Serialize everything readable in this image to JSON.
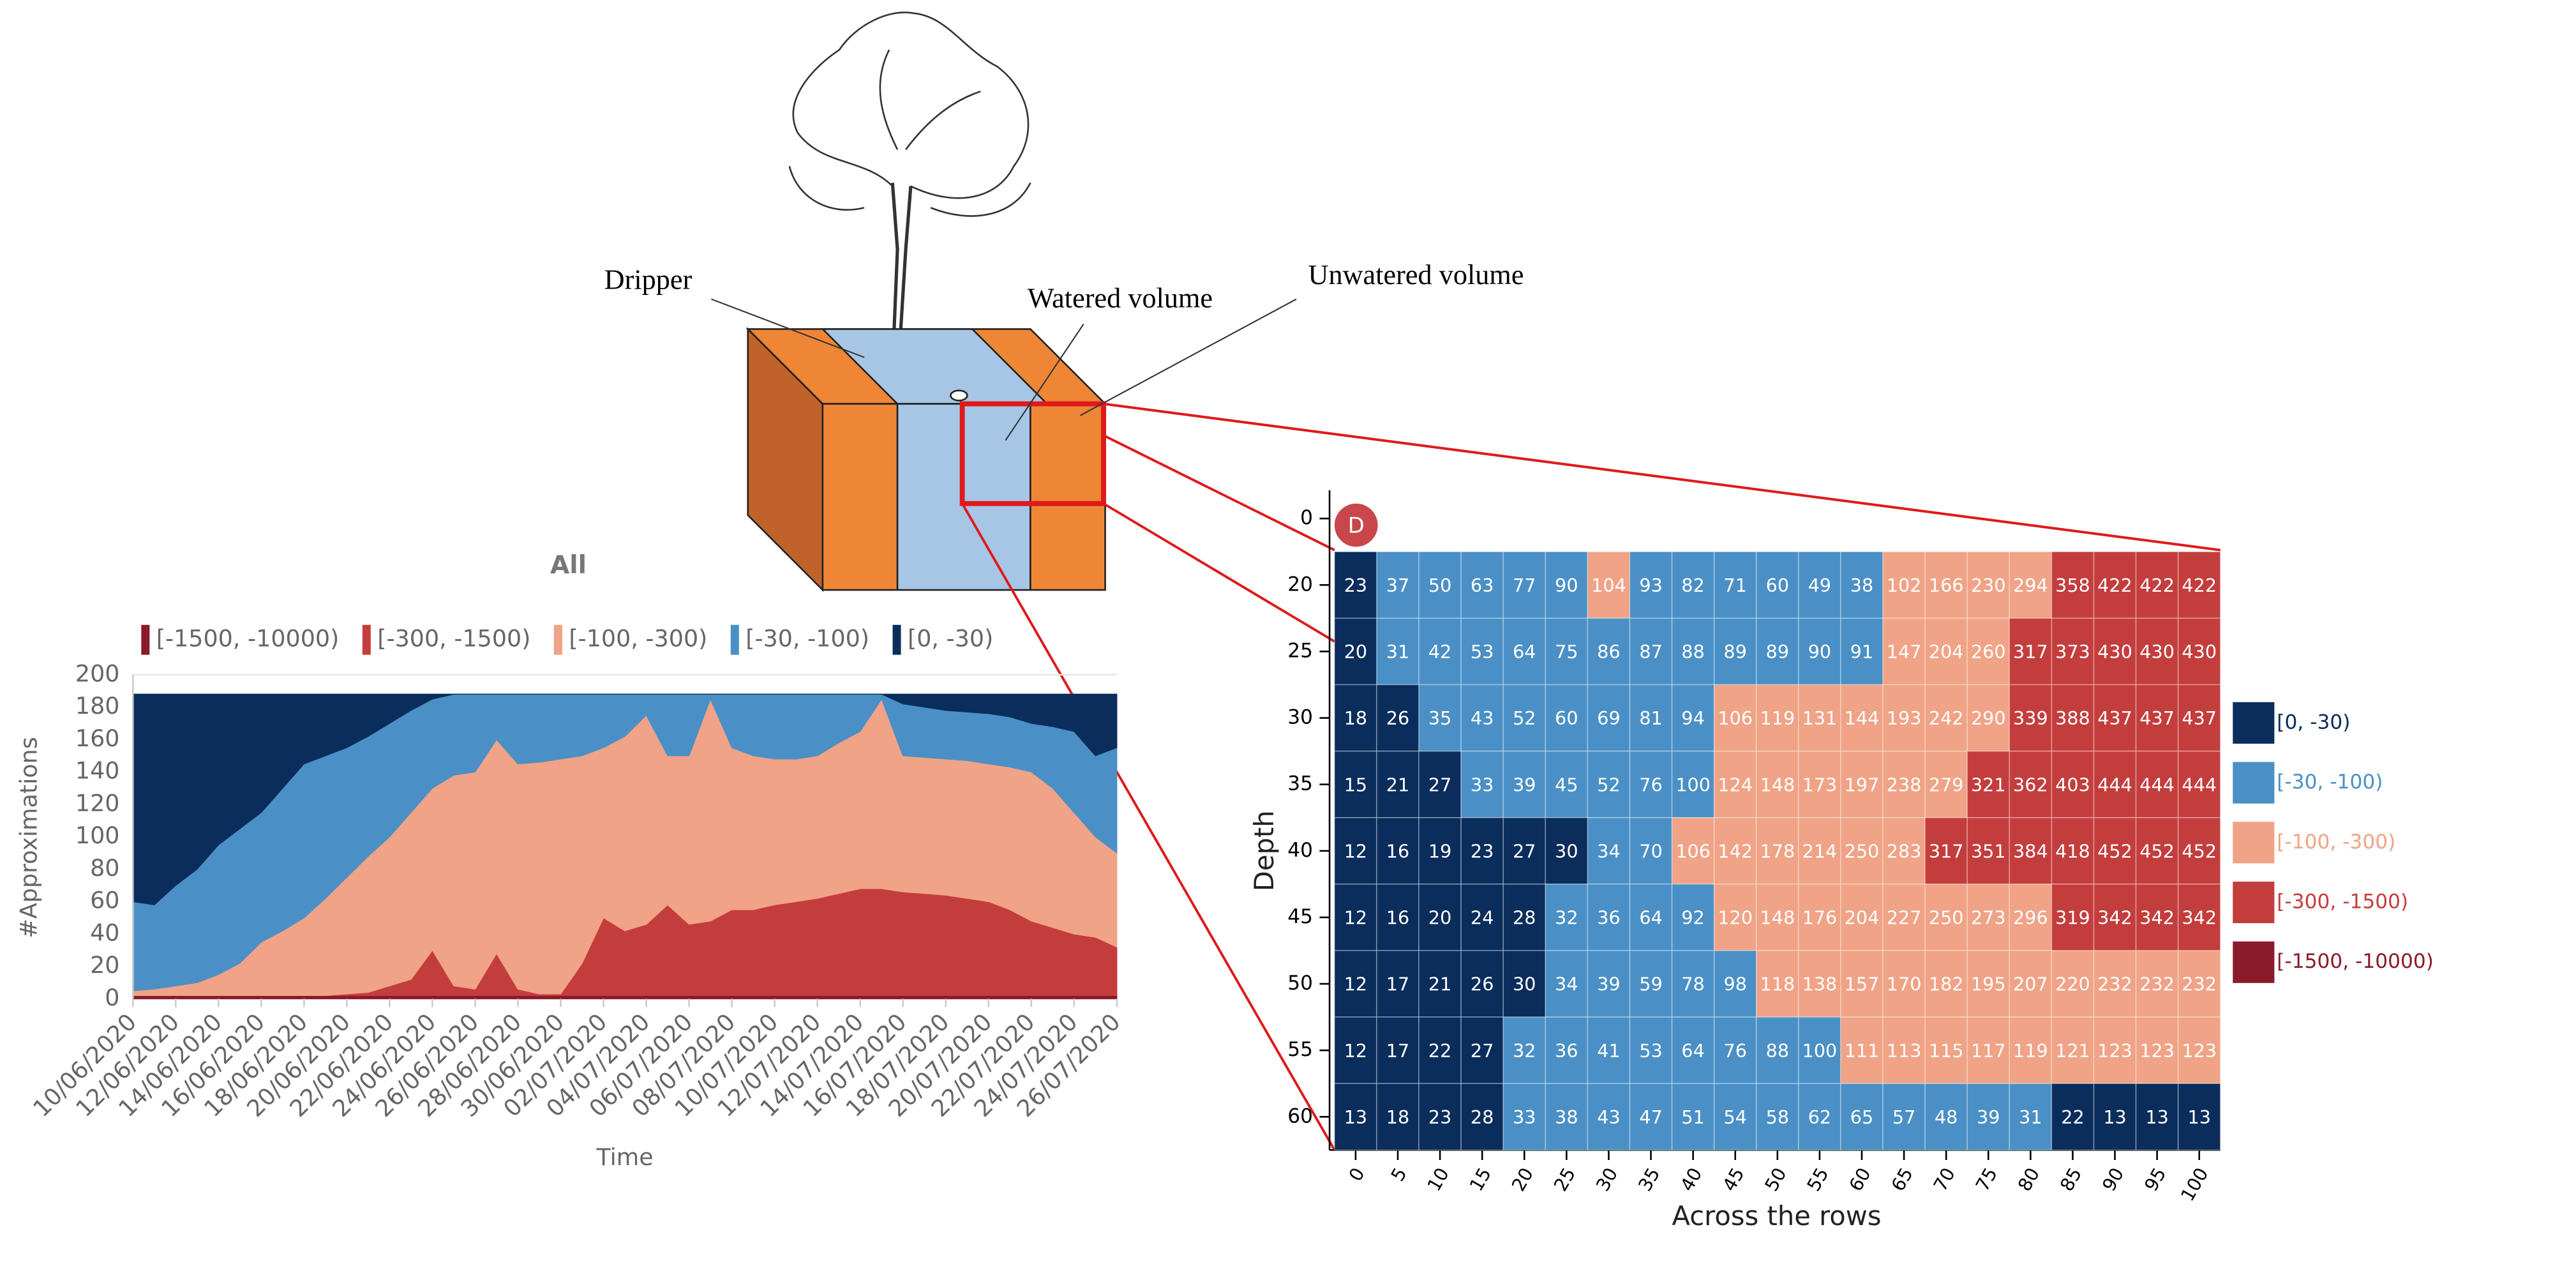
{
  "diagram": {
    "labels": [
      "Dripper",
      "Watered volume",
      "Unwatered volume"
    ],
    "panel_label": "D"
  },
  "chart_data": [
    {
      "type": "area",
      "stacked": true,
      "title": "All",
      "x_label": "Time",
      "y_label": "#Approximations",
      "categories": [
        "10/06/2020",
        null,
        "12/06/2020",
        null,
        "14/06/2020",
        null,
        "16/06/2020",
        null,
        "18/06/2020",
        null,
        "20/06/2020",
        null,
        "22/06/2020",
        null,
        "24/06/2020",
        null,
        "26/06/2020",
        null,
        "28/06/2020",
        null,
        "30/06/2020",
        null,
        "02/07/2020",
        null,
        "04/07/2020",
        null,
        "06/07/2020",
        null,
        "08/07/2020",
        null,
        "10/07/2020",
        null,
        "12/07/2020",
        null,
        "14/07/2020",
        null,
        "16/07/2020",
        null,
        "18/07/2020",
        null,
        "20/07/2020",
        null,
        "22/07/2020",
        null,
        "24/07/2020",
        null,
        "26/07/2020"
      ],
      "series": [
        {
          "name": "[-1500, -10000)",
          "color": "#8b1a2b",
          "values": [
            2,
            2,
            2,
            2,
            2,
            2,
            2,
            2,
            2,
            2,
            2,
            2,
            2,
            2,
            2,
            2,
            2,
            2,
            2,
            2,
            2,
            2,
            2,
            2,
            2,
            2,
            2,
            2,
            2,
            2,
            2,
            2,
            2,
            2,
            2,
            2,
            2,
            2,
            2,
            2,
            2,
            2,
            2,
            2,
            2,
            2,
            2
          ]
        },
        {
          "name": "[-300, -1500)",
          "color": "#c43d3d",
          "values": [
            0,
            0,
            0,
            0,
            0,
            0,
            0,
            0,
            0,
            0,
            1,
            2,
            6,
            10,
            28,
            6,
            4,
            26,
            4,
            1,
            1,
            20,
            48,
            40,
            44,
            56,
            44,
            46,
            53,
            53,
            56,
            58,
            60,
            63,
            66,
            66,
            64,
            63,
            62,
            60,
            58,
            53,
            46,
            42,
            38,
            36,
            30
          ]
        },
        {
          "name": "[-100, -300)",
          "color": "#f0a386",
          "values": [
            3,
            4,
            6,
            8,
            13,
            20,
            33,
            40,
            48,
            60,
            72,
            84,
            92,
            103,
            100,
            130,
            134,
            132,
            139,
            143,
            145,
            128,
            105,
            120,
            129,
            92,
            104,
            137,
            100,
            95,
            90,
            88,
            88,
            93,
            97,
            117,
            84,
            84,
            84,
            85,
            85,
            88,
            92,
            86,
            75,
            62,
            58
          ]
        },
        {
          "name": "[-30, -100)",
          "color": "#4a90c6",
          "values": [
            55,
            52,
            62,
            70,
            80,
            83,
            80,
            88,
            95,
            88,
            80,
            74,
            70,
            63,
            55,
            50,
            48,
            28,
            43,
            42,
            40,
            38,
            33,
            26,
            13,
            38,
            38,
            3,
            33,
            38,
            40,
            40,
            38,
            30,
            23,
            3,
            32,
            31,
            30,
            30,
            31,
            31,
            30,
            38,
            50,
            50,
            65
          ]
        },
        {
          "name": "[0, -30)",
          "color": "#0b2d5c",
          "values": [
            128,
            130,
            118,
            108,
            93,
            83,
            73,
            58,
            43,
            38,
            33,
            26,
            18,
            10,
            3,
            0,
            0,
            0,
            0,
            0,
            0,
            0,
            0,
            0,
            0,
            0,
            0,
            0,
            0,
            0,
            0,
            0,
            0,
            0,
            0,
            0,
            6,
            8,
            10,
            11,
            12,
            14,
            18,
            20,
            23,
            38,
            33
          ]
        }
      ],
      "ylim": [
        0,
        200
      ],
      "yticks": [
        0,
        20,
        40,
        60,
        80,
        100,
        120,
        140,
        160,
        180,
        200
      ],
      "grid": true,
      "legend": "top"
    },
    {
      "type": "heatmap",
      "x_label": "Across the rows",
      "y_label": "Depth",
      "x": [
        0,
        5,
        10,
        15,
        20,
        25,
        30,
        35,
        40,
        45,
        50,
        55,
        60,
        65,
        70,
        75,
        80,
        85,
        90,
        95,
        100
      ],
      "y": [
        20,
        25,
        30,
        35,
        40,
        45,
        50,
        55,
        60
      ],
      "yticks": [
        0,
        20,
        25,
        30,
        35,
        40,
        45,
        50,
        55,
        60
      ],
      "values": [
        [
          23,
          37,
          50,
          63,
          77,
          90,
          104,
          93,
          82,
          71,
          60,
          49,
          38,
          102,
          166,
          230,
          294,
          358,
          422,
          422,
          422
        ],
        [
          20,
          31,
          42,
          53,
          64,
          75,
          86,
          87,
          88,
          89,
          89,
          90,
          91,
          147,
          204,
          260,
          317,
          373,
          430,
          430,
          430
        ],
        [
          18,
          26,
          35,
          43,
          52,
          60,
          69,
          81,
          94,
          106,
          119,
          131,
          144,
          193,
          242,
          290,
          339,
          388,
          437,
          437,
          437
        ],
        [
          15,
          21,
          27,
          33,
          39,
          45,
          52,
          76,
          100,
          124,
          148,
          173,
          197,
          238,
          279,
          321,
          362,
          403,
          444,
          444,
          444
        ],
        [
          12,
          16,
          19,
          23,
          27,
          30,
          34,
          70,
          106,
          142,
          178,
          214,
          250,
          283,
          317,
          351,
          384,
          418,
          452,
          452,
          452
        ],
        [
          12,
          16,
          20,
          24,
          28,
          32,
          36,
          64,
          92,
          120,
          148,
          176,
          204,
          227,
          250,
          273,
          296,
          319,
          342,
          342,
          342
        ],
        [
          12,
          17,
          21,
          26,
          30,
          34,
          39,
          59,
          78,
          98,
          118,
          138,
          157,
          170,
          182,
          195,
          207,
          220,
          232,
          232,
          232
        ],
        [
          12,
          17,
          22,
          27,
          32,
          36,
          41,
          53,
          64,
          76,
          88,
          100,
          111,
          113,
          115,
          117,
          119,
          121,
          123,
          123,
          123
        ],
        [
          13,
          18,
          23,
          28,
          33,
          38,
          43,
          47,
          51,
          54,
          58,
          62,
          65,
          57,
          48,
          39,
          31,
          22,
          13,
          13,
          13
        ]
      ],
      "bin_limits": [
        30,
        100,
        300,
        1500,
        10000
      ],
      "legend_items": [
        {
          "label": "[0, -30)",
          "color": "#0b2d5c"
        },
        {
          "label": "[-30, -100)",
          "color": "#4a90c6"
        },
        {
          "label": "[-100, -300)",
          "color": "#f0a386"
        },
        {
          "label": "[-300, -1500)",
          "color": "#c43d3d"
        },
        {
          "label": "[-1500, -10000)",
          "color": "#8b1a2b"
        }
      ],
      "legend": "right"
    }
  ]
}
